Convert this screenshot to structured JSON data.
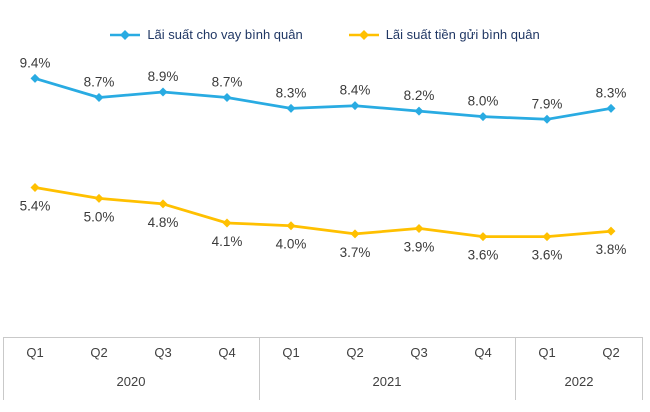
{
  "chart_data": {
    "type": "line",
    "categories": [
      "Q1",
      "Q2",
      "Q3",
      "Q4",
      "Q1",
      "Q2",
      "Q3",
      "Q4",
      "Q1",
      "Q2"
    ],
    "year_groups": [
      {
        "label": "2020",
        "span": 4
      },
      {
        "label": "2021",
        "span": 4
      },
      {
        "label": "2022",
        "span": 2
      }
    ],
    "series": [
      {
        "name": "Lãi suất cho vay bình quân",
        "color": "#29ABE2",
        "values": [
          9.4,
          8.7,
          8.9,
          8.7,
          8.3,
          8.4,
          8.2,
          8.0,
          7.9,
          8.3
        ],
        "labels": [
          "9.4%",
          "8.7%",
          "8.9%",
          "8.7%",
          "8.3%",
          "8.4%",
          "8.2%",
          "8.0%",
          "7.9%",
          "8.3%"
        ],
        "label_position": "above",
        "marker": "diamond"
      },
      {
        "name": "Lãi suất tiền gửi bình quân",
        "color": "#FFC000",
        "values": [
          5.4,
          5.0,
          4.8,
          4.1,
          4.0,
          3.7,
          3.9,
          3.6,
          3.6,
          3.8
        ],
        "labels": [
          "5.4%",
          "5.0%",
          "4.8%",
          "4.1%",
          "4.0%",
          "3.7%",
          "3.9%",
          "3.6%",
          "3.6%",
          "3.8%"
        ],
        "label_position": "below",
        "marker": "diamond"
      }
    ],
    "ylim": [
      3,
      10
    ],
    "grid": false,
    "legend_position": "top",
    "title": "",
    "xlabel": "",
    "ylabel": ""
  },
  "style": {
    "label_color": "#3b3b3b",
    "legend_text_color": "#203764",
    "axis_line_color": "#c9c9c9",
    "background": "#ffffff"
  }
}
